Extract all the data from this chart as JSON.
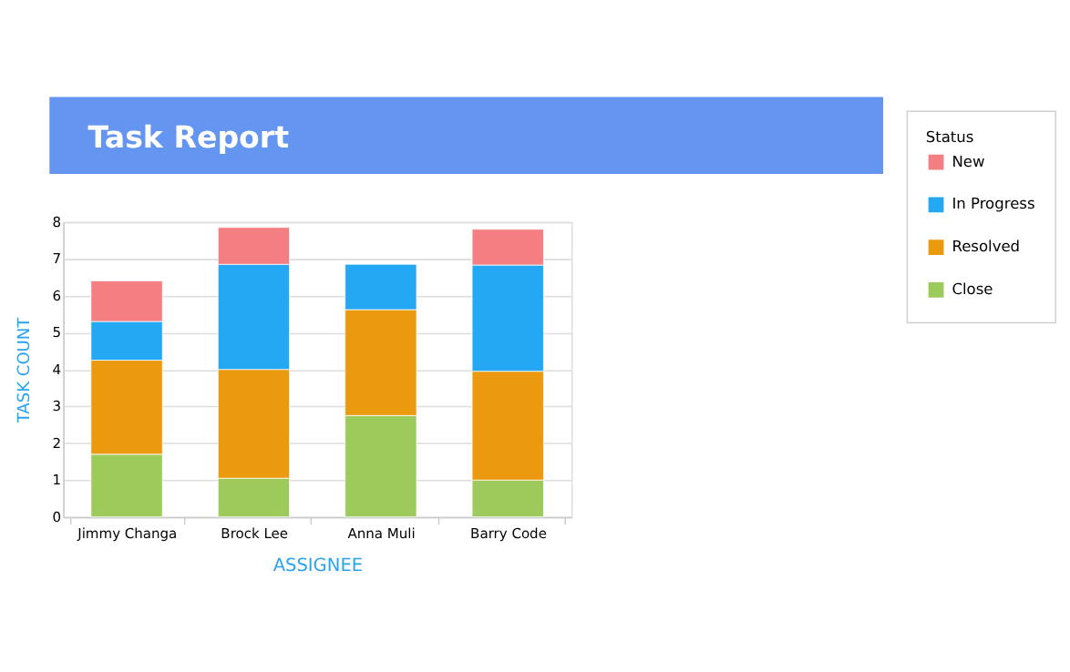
{
  "chart_data": {
    "type": "bar",
    "title": "Task Report",
    "xlabel": "ASSIGNEE",
    "ylabel": "TASK COUNT",
    "legend_title": "Status",
    "categories": [
      "Jimmy Changa",
      "Brock Lee",
      "Anna Muli",
      "Barry Code"
    ],
    "stacked": true,
    "series": [
      {
        "name": "Close",
        "color": "#9ccb5c",
        "values": [
          1.7,
          1.05,
          2.75,
          1.0
        ]
      },
      {
        "name": "Resolved",
        "color": "#eb9a0f",
        "values": [
          2.55,
          2.95,
          2.87,
          2.95
        ]
      },
      {
        "name": "In Progress",
        "color": "#25a8f4",
        "values": [
          1.05,
          2.85,
          1.23,
          2.88
        ]
      },
      {
        "name": "New",
        "color": "#f47f82",
        "values": [
          1.1,
          1.0,
          null,
          0.97
        ]
      }
    ],
    "ylim": [
      0,
      8
    ],
    "yticks": [
      0,
      1,
      2,
      3,
      4,
      5,
      6,
      7,
      8
    ],
    "grid": "y",
    "legend": "right"
  }
}
